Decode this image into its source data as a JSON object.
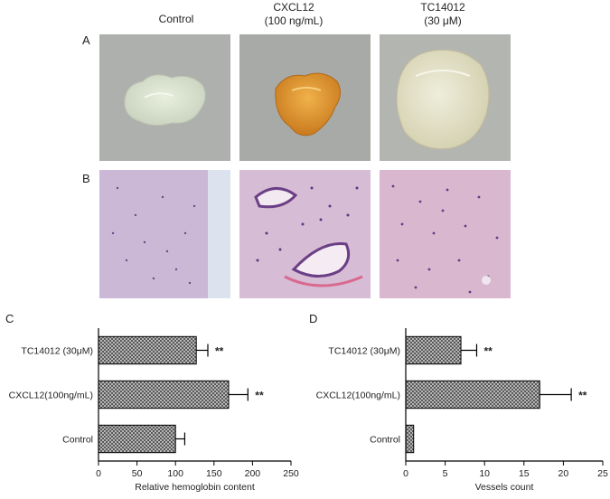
{
  "columns": [
    "Control",
    "CXCL12\n(100 ng/mL)",
    "TC14012\n(30 μM)"
  ],
  "column_lines": [
    [
      "Control"
    ],
    [
      "CXCL12",
      "(100 ng/mL)"
    ],
    [
      "TC14012",
      "(30 μM)"
    ]
  ],
  "panels": {
    "a": "A",
    "b": "B",
    "c": "C",
    "d": "D"
  },
  "colors": {
    "bar_fill": "#8c8c8c",
    "axis": "#000000"
  },
  "chart_data": [
    {
      "type": "bar",
      "orientation": "horizontal",
      "panel": "C",
      "categories": [
        "TC14012 (30μM)",
        "CXCL12(100ng/mL)",
        "Control"
      ],
      "values": [
        127,
        169,
        100
      ],
      "errors": [
        15,
        25,
        12
      ],
      "significance": [
        "**",
        "**",
        ""
      ],
      "xlabel": "Relative hemoglobin content",
      "xlim": [
        0,
        250
      ],
      "xticks": [
        0,
        50,
        100,
        150,
        200,
        250
      ]
    },
    {
      "type": "bar",
      "orientation": "horizontal",
      "panel": "D",
      "categories": [
        "TC14012 (30μM)",
        "CXCL12(100ng/mL)",
        "Control"
      ],
      "values": [
        7,
        17,
        1
      ],
      "errors": [
        2,
        4,
        0
      ],
      "significance": [
        "**",
        "**",
        ""
      ],
      "xlabel": "Vessels count",
      "xlim": [
        0,
        25
      ],
      "xticks": [
        0,
        5,
        10,
        15,
        20,
        25
      ]
    }
  ]
}
